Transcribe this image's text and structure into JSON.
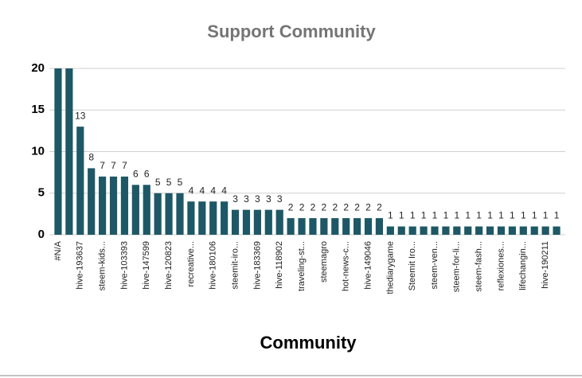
{
  "chart_data": {
    "type": "bar",
    "title": "Support Community",
    "x_label": "Community",
    "categories": [
      "#N/A",
      null,
      "hive-193637",
      null,
      "steem-kids...",
      null,
      "hive-103393",
      null,
      "hive-147599",
      null,
      "hive-120823",
      null,
      "recreative...",
      null,
      "hive-180106",
      null,
      "steemit-iro...",
      null,
      "hive-183369",
      null,
      "hive-118902",
      null,
      "traveling-st...",
      null,
      "steemagro",
      null,
      "hot-news-c...",
      null,
      "hive-149046",
      null,
      "thediarygame",
      null,
      "Steemit Iro...",
      null,
      "steem-ven...",
      null,
      "steem-for-li...",
      null,
      "steem-fash...",
      null,
      "reflexiones...",
      null,
      "lifechangin...",
      null,
      "hive-190211",
      null
    ],
    "values": [
      20,
      20,
      13,
      8,
      7,
      7,
      7,
      6,
      6,
      5,
      5,
      5,
      4,
      4,
      4,
      4,
      3,
      3,
      3,
      3,
      3,
      2,
      2,
      2,
      2,
      2,
      2,
      2,
      2,
      2,
      1,
      1,
      1,
      1,
      1,
      1,
      1,
      1,
      1,
      1,
      1,
      1,
      1,
      1,
      1,
      1
    ],
    "value_labels": [
      null,
      null,
      "13",
      "8",
      "7",
      "7",
      "7",
      "6",
      "6",
      "5",
      "5",
      "5",
      "4",
      "4",
      "4",
      "4",
      "3",
      "3",
      "3",
      "3",
      "3",
      "2",
      "2",
      "2",
      "2",
      "2",
      "2",
      "2",
      "2",
      "2",
      "1",
      "1",
      "1",
      "1",
      "1",
      "1",
      "1",
      "1",
      "1",
      "1",
      "1",
      "1",
      "1",
      "1",
      "1",
      "1"
    ],
    "color": "#1e5866",
    "ylim": [
      0,
      20
    ],
    "yticks": [
      0,
      5,
      10,
      15,
      20
    ],
    "grid": true
  }
}
